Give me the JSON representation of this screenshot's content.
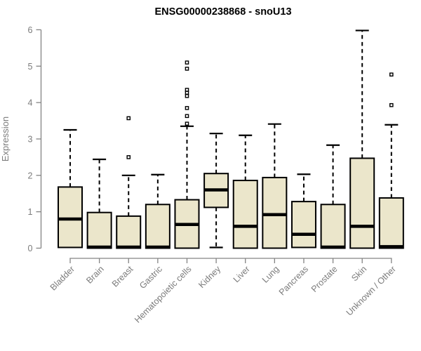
{
  "chart_data": {
    "type": "box",
    "title": "ENSG00000238868 - snoU13",
    "xlabel": "",
    "ylabel": "Expression",
    "ylim": [
      0,
      6
    ],
    "yticks": [
      0,
      1,
      2,
      3,
      4,
      5,
      6
    ],
    "grid": false,
    "legend": "none",
    "categories": [
      "Bladder",
      "Brain",
      "Breast",
      "Gastric",
      "Hematopoietic cells",
      "Kidney",
      "Liver",
      "Lung",
      "Pancreas",
      "Prostate",
      "Skin",
      "Unknown / Other"
    ],
    "boxes": [
      {
        "category": "Bladder",
        "low": 0.02,
        "q1": 0.02,
        "median": 0.8,
        "q3": 1.68,
        "high": 3.25,
        "outliers": []
      },
      {
        "category": "Brain",
        "low": 0.0,
        "q1": 0.0,
        "median": 0.03,
        "q3": 0.98,
        "high": 2.44,
        "outliers": []
      },
      {
        "category": "Breast",
        "low": 0.0,
        "q1": 0.0,
        "median": 0.03,
        "q3": 0.88,
        "high": 2.0,
        "outliers": [
          2.5,
          3.57
        ]
      },
      {
        "category": "Gastric",
        "low": 0.0,
        "q1": 0.0,
        "median": 0.03,
        "q3": 1.2,
        "high": 2.02,
        "outliers": []
      },
      {
        "category": "Hematopoietic cells",
        "low": 0.0,
        "q1": 0.0,
        "median": 0.65,
        "q3": 1.33,
        "high": 3.35,
        "outliers": [
          3.42,
          3.63,
          3.85,
          4.18,
          4.27,
          4.35,
          4.93,
          5.1
        ]
      },
      {
        "category": "Kidney",
        "low": 0.02,
        "q1": 1.12,
        "median": 1.6,
        "q3": 2.05,
        "high": 3.15,
        "outliers": []
      },
      {
        "category": "Liver",
        "low": 0.0,
        "q1": 0.0,
        "median": 0.6,
        "q3": 1.86,
        "high": 3.1,
        "outliers": []
      },
      {
        "category": "Lung",
        "low": 0.0,
        "q1": 0.0,
        "median": 0.92,
        "q3": 1.94,
        "high": 3.41,
        "outliers": []
      },
      {
        "category": "Pancreas",
        "low": 0.02,
        "q1": 0.02,
        "median": 0.38,
        "q3": 1.28,
        "high": 2.03,
        "outliers": []
      },
      {
        "category": "Prostate",
        "low": 0.0,
        "q1": 0.0,
        "median": 0.03,
        "q3": 1.2,
        "high": 2.83,
        "outliers": []
      },
      {
        "category": "Skin",
        "low": 0.0,
        "q1": 0.0,
        "median": 0.6,
        "q3": 2.47,
        "high": 5.98,
        "outliers": []
      },
      {
        "category": "Unknown / Other",
        "low": 0.0,
        "q1": 0.0,
        "median": 0.04,
        "q3": 1.38,
        "high": 3.39,
        "outliers": [
          3.93,
          4.77
        ]
      }
    ],
    "style": {
      "box_fill": "#EBE6CB",
      "box_stroke": "#000000",
      "axis_color": "#848484",
      "label_color": "#7b7b7b",
      "title_color": "#000000",
      "background": "#FFFFFF"
    }
  }
}
